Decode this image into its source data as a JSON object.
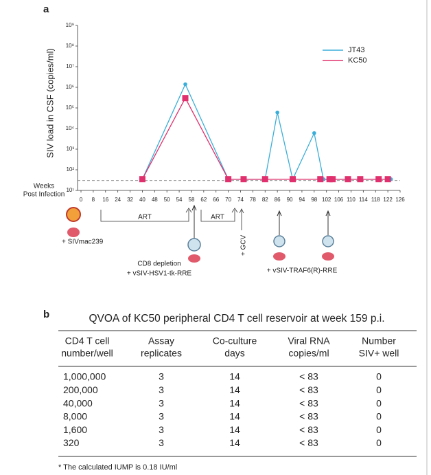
{
  "panel_labels": [
    "a",
    "b"
  ],
  "chart_data": {
    "type": "line",
    "log_scale": true,
    "y_label": "SIV load in CSF (copies/ml)",
    "ylim": [
      10,
      1000000000
    ],
    "yticks": [
      {
        "value": 10,
        "label": "10¹"
      },
      {
        "value": 100,
        "label": "10²"
      },
      {
        "value": 1000,
        "label": "10³"
      },
      {
        "value": 10000,
        "label": "10⁴"
      },
      {
        "value": 100000,
        "label": "10⁵"
      },
      {
        "value": 1000000,
        "label": "10⁶"
      },
      {
        "value": 10000000,
        "label": "10⁷"
      },
      {
        "value": 100000000,
        "label": "10⁸"
      },
      {
        "value": 1000000000,
        "label": "10⁹"
      }
    ],
    "xlim": [
      0,
      126
    ],
    "xticks": [
      0,
      8,
      16,
      24,
      32,
      40,
      48,
      50,
      54,
      58,
      62,
      66,
      70,
      74,
      78,
      82,
      86,
      90,
      94,
      98,
      102,
      106,
      110,
      114,
      118,
      122,
      126
    ],
    "threshold": 30,
    "legend": "upper right",
    "series": [
      {
        "name": "JT43",
        "color": "#3aaed8",
        "marker": "circle",
        "x": [
          40,
          56,
          70,
          82,
          86,
          91,
          98,
          101,
          123
        ],
        "values": [
          35,
          1400000,
          35,
          35,
          60000,
          35,
          6000,
          35,
          35
        ]
      },
      {
        "name": "KC50",
        "color": "#e0306d",
        "marker": "square",
        "x": [
          40,
          56,
          70,
          75,
          82,
          91,
          100,
          103,
          104,
          109,
          113,
          119,
          122
        ],
        "values": [
          35,
          300000,
          35,
          35,
          35,
          35,
          35,
          35,
          35,
          35,
          35,
          35,
          35
        ]
      }
    ],
    "annotations": [
      "Weeks",
      "Post Infection",
      "ART",
      "ART",
      "+ GCV",
      "+ SIVmac239",
      "CD8 depletion",
      "+ vSIV-HSV1-tk-RRE",
      "+ vSIV-TRAF6(R)-RRE"
    ]
  },
  "table": {
    "title": "QVOA of KC50 peripheral CD4 T cell reservoir at week 159 p.i.",
    "headers": [
      [
        "CD4 T cell",
        "number/well"
      ],
      [
        "Assay",
        "replicates"
      ],
      [
        "Co-culture",
        "days"
      ],
      [
        "Viral RNA",
        "copies/ml"
      ],
      [
        "Number",
        "SIV+ well"
      ]
    ],
    "rows": [
      [
        "1,000,000",
        "3",
        "14",
        "< 83",
        "0"
      ],
      [
        "200,000",
        "3",
        "14",
        "< 83",
        "0"
      ],
      [
        "40,000",
        "3",
        "14",
        "< 83",
        "0"
      ],
      [
        "8,000",
        "3",
        "14",
        "< 83",
        "0"
      ],
      [
        "1,600",
        "3",
        "14",
        "< 83",
        "0"
      ],
      [
        "320",
        "3",
        "14",
        "< 83",
        "0"
      ]
    ],
    "footnote": "* The calculated IUMP is 0.18 IU/ml"
  }
}
